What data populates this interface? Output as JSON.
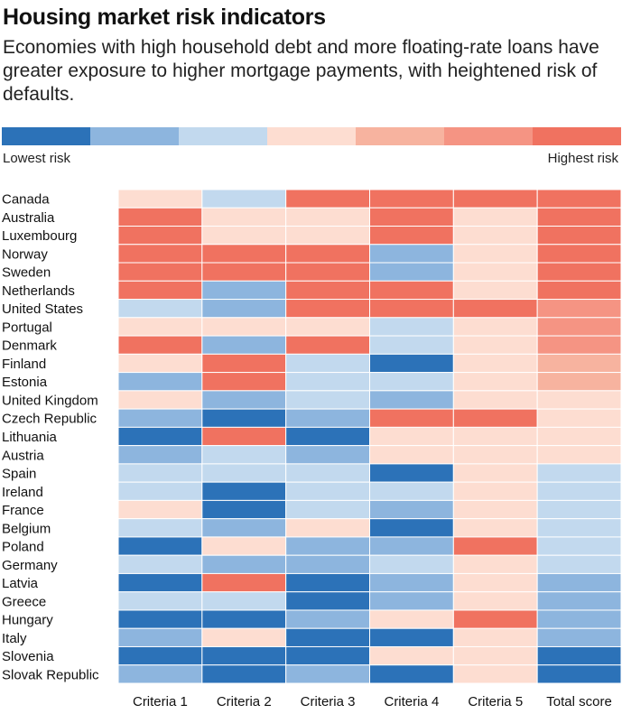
{
  "page": {
    "title": "Housing market risk indicators",
    "subtitle": "Economies with high household debt and more floating-rate loans have greater exposure to higher mortgage payments, with heightened risk of defaults."
  },
  "legend": {
    "low_label": "Lowest risk",
    "high_label": "Highest risk",
    "colors": [
      "#2c72b8",
      "#8db5de",
      "#c2d9ee",
      "#fdddd1",
      "#f7b39f",
      "#f59483",
      "#f07260"
    ]
  },
  "chart_data": {
    "type": "heatmap",
    "title": "Housing market risk indicators",
    "subtitle": "Economies with high household debt and more floating-rate loans have greater exposure to higher mortgage payments, with heightened risk of defaults.",
    "scale": {
      "min": 1,
      "max": 7,
      "min_label": "Lowest risk",
      "max_label": "Highest risk"
    },
    "columns": [
      "Criteria 1",
      "Criteria 2",
      "Criteria 3",
      "Criteria 4",
      "Criteria 5",
      "Total score"
    ],
    "rows": [
      "Canada",
      "Australia",
      "Luxembourg",
      "Norway",
      "Sweden",
      "Netherlands",
      "United States",
      "Portugal",
      "Denmark",
      "Finland",
      "Estonia",
      "United Kingdom",
      "Czech Republic",
      "Lithuania",
      "Austria",
      "Spain",
      "Ireland",
      "France",
      "Belgium",
      "Poland",
      "Germany",
      "Latvia",
      "Greece",
      "Hungary",
      "Italy",
      "Slovenia",
      "Slovak Republic"
    ],
    "values": [
      [
        4,
        3,
        7,
        7,
        7,
        7
      ],
      [
        7,
        4,
        4,
        7,
        4,
        7
      ],
      [
        7,
        4,
        4,
        7,
        4,
        7
      ],
      [
        7,
        7,
        7,
        2,
        4,
        7
      ],
      [
        7,
        7,
        7,
        2,
        4,
        7
      ],
      [
        7,
        2,
        7,
        7,
        4,
        7
      ],
      [
        3,
        2,
        7,
        7,
        7,
        6
      ],
      [
        4,
        4,
        4,
        3,
        4,
        6
      ],
      [
        7,
        2,
        7,
        3,
        4,
        6
      ],
      [
        4,
        7,
        3,
        1,
        4,
        5
      ],
      [
        2,
        7,
        3,
        3,
        4,
        5
      ],
      [
        4,
        2,
        3,
        2,
        4,
        4
      ],
      [
        2,
        1,
        2,
        7,
        7,
        4
      ],
      [
        1,
        7,
        1,
        4,
        4,
        4
      ],
      [
        2,
        3,
        2,
        4,
        4,
        4
      ],
      [
        3,
        3,
        3,
        1,
        4,
        3
      ],
      [
        3,
        1,
        3,
        3,
        4,
        3
      ],
      [
        4,
        1,
        3,
        2,
        4,
        3
      ],
      [
        3,
        2,
        4,
        1,
        4,
        3
      ],
      [
        1,
        4,
        2,
        2,
        7,
        3
      ],
      [
        3,
        2,
        2,
        3,
        4,
        3
      ],
      [
        1,
        7,
        1,
        2,
        4,
        2
      ],
      [
        3,
        3,
        1,
        2,
        4,
        2
      ],
      [
        1,
        1,
        2,
        4,
        7,
        2
      ],
      [
        2,
        4,
        1,
        1,
        4,
        2
      ],
      [
        1,
        1,
        1,
        4,
        4,
        1
      ],
      [
        2,
        1,
        2,
        1,
        4,
        1
      ]
    ]
  }
}
